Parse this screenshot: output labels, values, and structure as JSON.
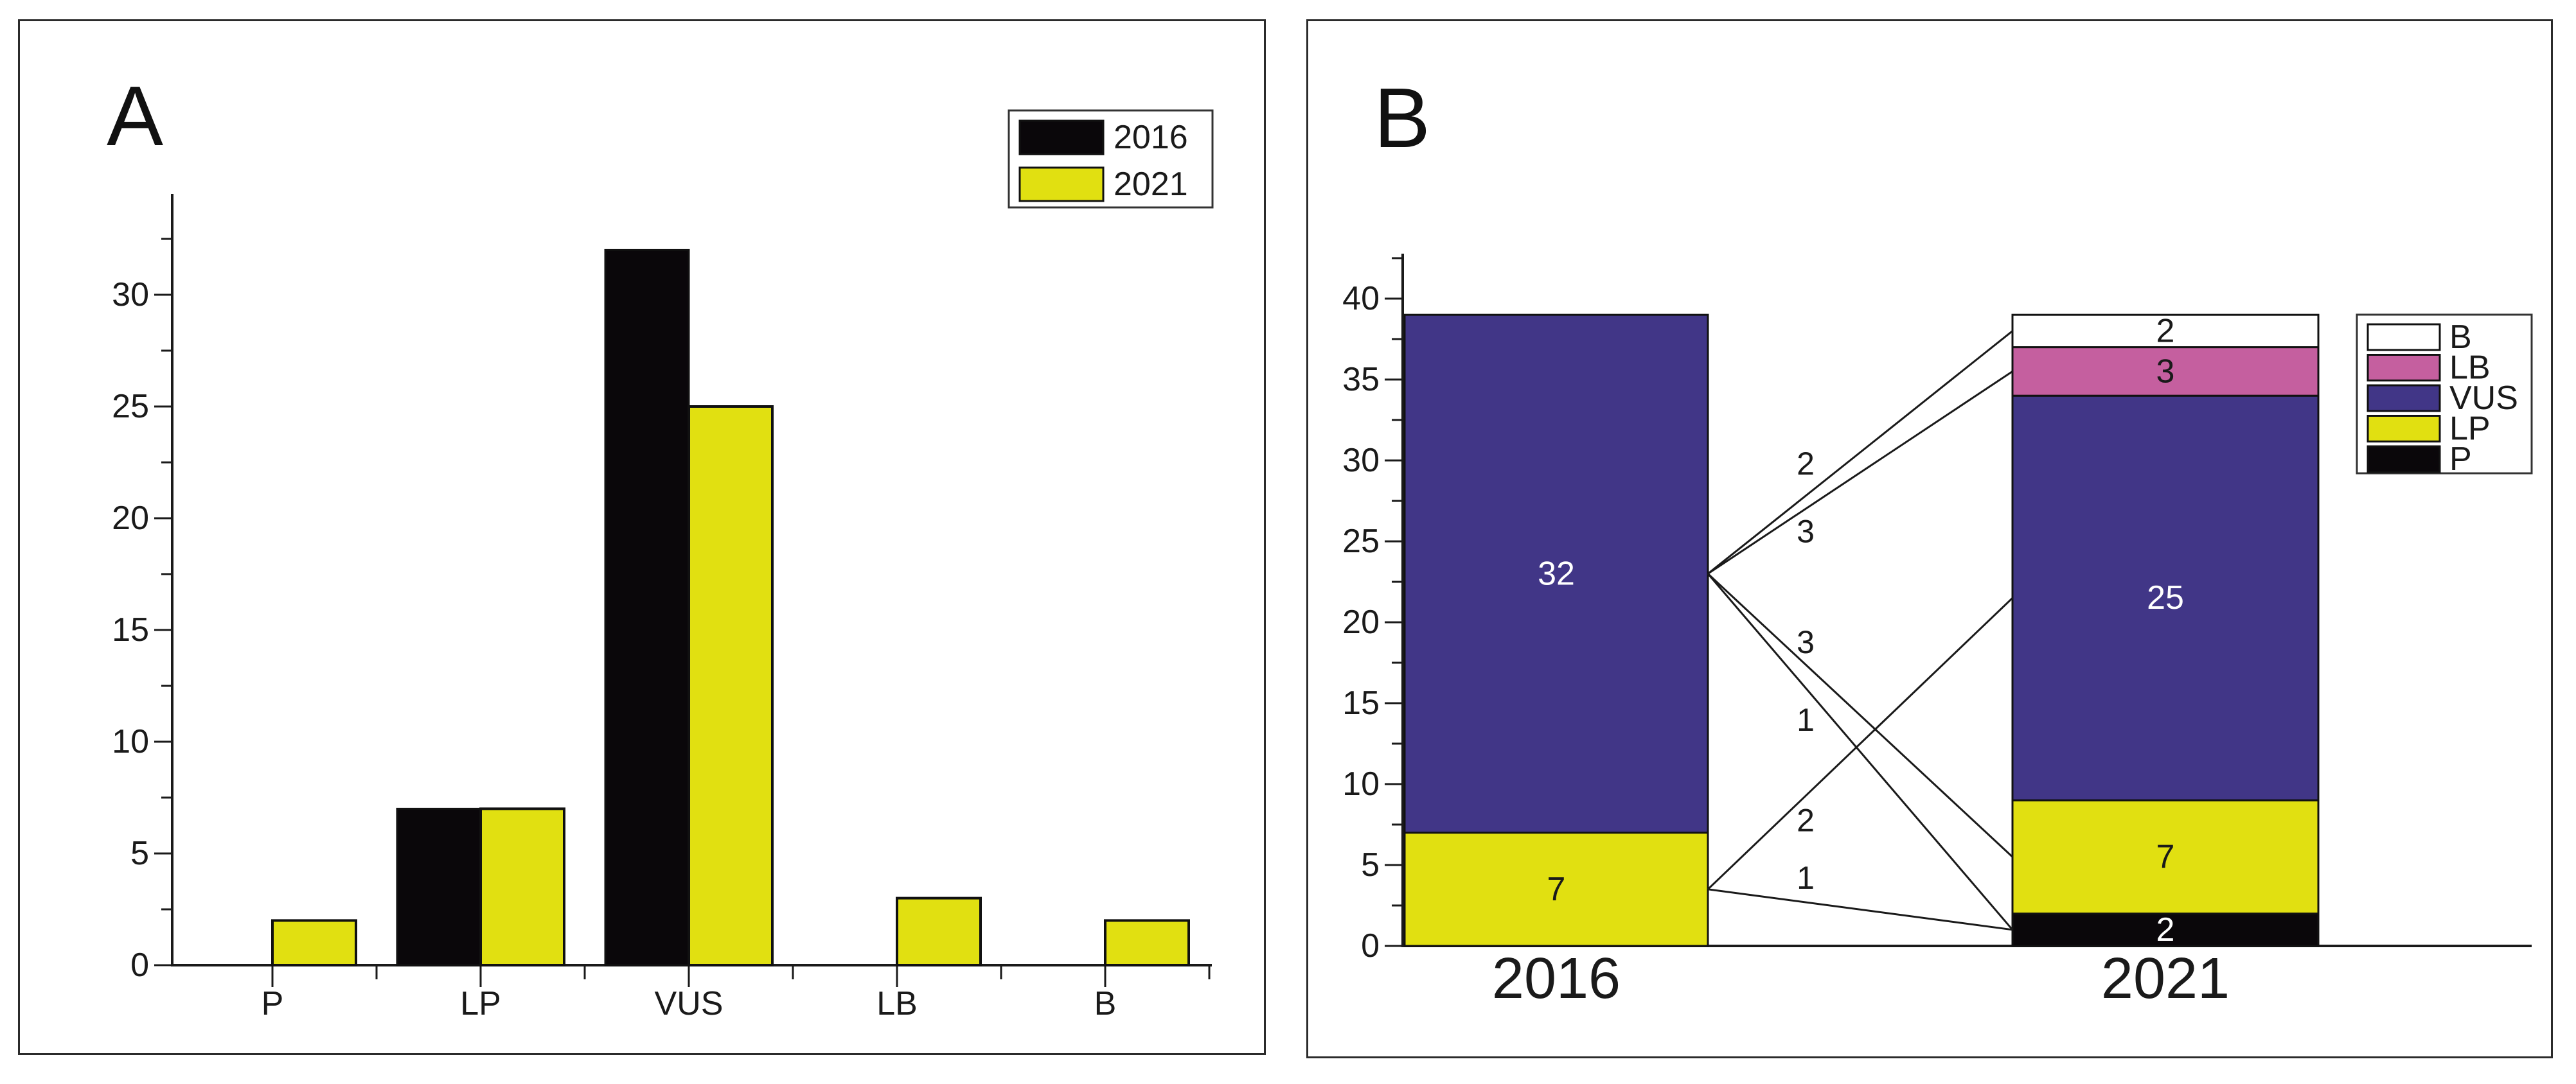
{
  "figure": {
    "background": "#ffffff",
    "frame_color": "#2b2b2b",
    "text_color": "#1a1a1a"
  },
  "panels": [
    {
      "label": "A"
    },
    {
      "label": "B"
    }
  ],
  "chart_data": [
    {
      "type": "bar",
      "panel": "A",
      "title": "",
      "categories": [
        "P",
        "LP",
        "VUS",
        "LB",
        "B"
      ],
      "series": [
        {
          "name": "2016",
          "color": "#0a070a",
          "values": [
            0,
            7,
            32,
            0,
            0
          ]
        },
        {
          "name": "2021",
          "color": "#e1e011",
          "values": [
            2,
            7,
            25,
            3,
            2
          ]
        }
      ],
      "xlabel": "",
      "ylabel": "",
      "ylim": [
        0,
        34.5
      ],
      "yticks": [
        0,
        5,
        10,
        15,
        20,
        25,
        30
      ],
      "minor_tick_step": 2.5,
      "grid": false,
      "legend_position": "top-right"
    },
    {
      "type": "stacked-bar-flow",
      "panel": "B",
      "title": "",
      "categories": [
        "2016",
        "2021"
      ],
      "stack_order_bottom_up": {
        "2016": [
          "LP",
          "VUS"
        ],
        "2021": [
          "P",
          "LP",
          "VUS",
          "LB",
          "B"
        ]
      },
      "values": {
        "2016": {
          "LP": 7,
          "VUS": 32
        },
        "2021": {
          "P": 2,
          "LP": 7,
          "VUS": 25,
          "LB": 3,
          "B": 2
        }
      },
      "totals": {
        "2016": 39,
        "2021": 39
      },
      "segment_colors": {
        "B": "#ffffff",
        "LB": "#c55f9f",
        "VUS": "#413687",
        "LP": "#e1e011",
        "P": "#0a070a"
      },
      "segment_label_light": [
        "VUS",
        "P"
      ],
      "flows": [
        {
          "from": "VUS",
          "to": "B",
          "value": 2
        },
        {
          "from": "VUS",
          "to": "LB",
          "value": 3
        },
        {
          "from": "VUS",
          "to": "LP",
          "value": 3
        },
        {
          "from": "VUS",
          "to": "P",
          "value": 1
        },
        {
          "from": "LP",
          "to": "VUS",
          "value": 2
        },
        {
          "from": "LP",
          "to": "P",
          "value": 1
        }
      ],
      "ylim": [
        0,
        42.8
      ],
      "yticks": [
        0,
        5,
        10,
        15,
        20,
        25,
        30,
        35,
        40
      ],
      "minor_tick_step": 2.5,
      "grid": false,
      "legend": [
        "B",
        "LB",
        "VUS",
        "LP",
        "P"
      ],
      "legend_position": "right"
    }
  ]
}
